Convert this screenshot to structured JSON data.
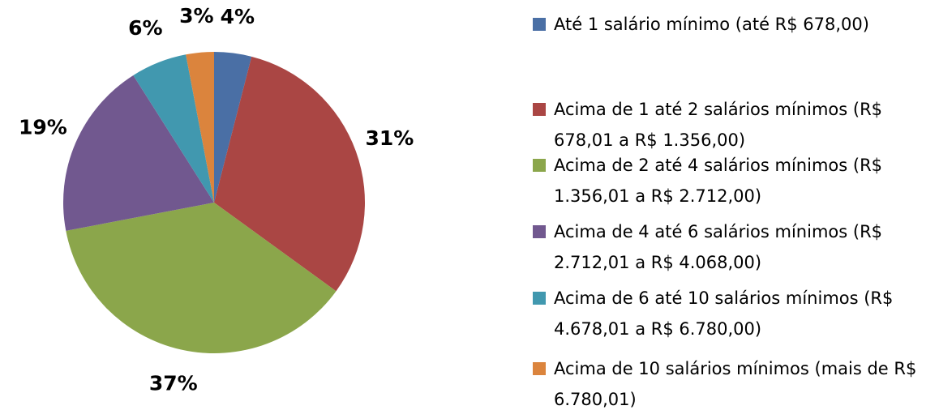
{
  "chart_data": {
    "type": "pie",
    "categories": [
      "Até 1 salário mínimo (até R$ 678,00)",
      "Acima de 1 até 2 salários mínimos (R$ 678,01 a R$ 1.356,00)",
      "Acima de 2 até 4 salários mínimos (R$ 1.356,01 a R$ 2.712,00)",
      "Acima de 4 até 6 salários mínimos (R$ 2.712,01 a R$ 4.068,00)",
      "Acima de 6 até 10 salários mínimos (R$ 4.678,01 a R$ 6.780,00)",
      "Acima de 10 salários mínimos (mais de R$ 6.780,01)"
    ],
    "values": [
      4,
      31,
      37,
      19,
      6,
      3
    ],
    "value_labels": [
      "4%",
      "31%",
      "37%",
      "19%",
      "6%",
      "3%"
    ],
    "colors": [
      "#4a6fa5",
      "#aa4644",
      "#8ba64b",
      "#71588f",
      "#4198af",
      "#db843d"
    ],
    "legend": "right"
  }
}
